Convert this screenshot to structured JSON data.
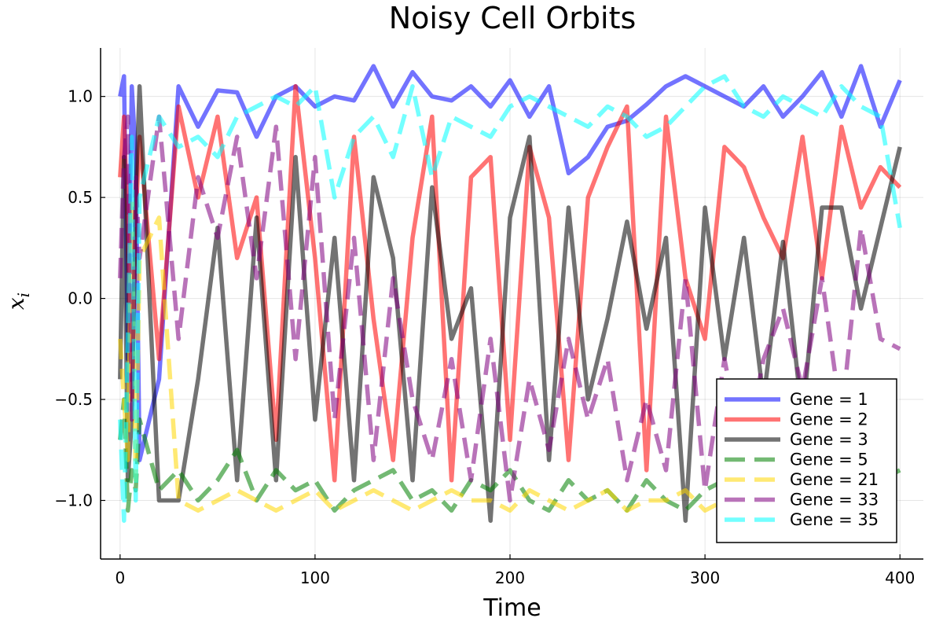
{
  "chart_data": {
    "type": "line",
    "title": "Noisy Cell Orbits",
    "xlabel": "Time",
    "ylabel": "x",
    "ylabel_sub": "i",
    "xlim": [
      -10,
      412
    ],
    "ylim": [
      -1.29,
      1.24
    ],
    "x_ticks": [
      0,
      100,
      200,
      300,
      400
    ],
    "x_tick_labels": [
      "0",
      "100",
      "200",
      "300",
      "400"
    ],
    "y_ticks": [
      -1.0,
      -0.5,
      0.0,
      0.5,
      1.0
    ],
    "y_tick_labels": [
      "−1.0",
      "−0.5",
      "0.0",
      "0.5",
      "1.0"
    ],
    "grid": true,
    "legend_position": "bottom-right",
    "x": [
      0,
      2,
      4,
      6,
      8,
      10,
      20,
      30,
      40,
      50,
      60,
      70,
      80,
      90,
      100,
      110,
      120,
      130,
      140,
      150,
      160,
      170,
      180,
      190,
      200,
      210,
      220,
      230,
      240,
      250,
      260,
      270,
      280,
      290,
      300,
      310,
      320,
      330,
      340,
      350,
      360,
      370,
      380,
      390,
      400
    ],
    "series": [
      {
        "name": "Gene = 1",
        "color": "#0000ff",
        "dash": "solid",
        "values": [
          1.0,
          1.1,
          -0.3,
          1.05,
          0.7,
          -0.8,
          -0.4,
          1.05,
          0.85,
          1.03,
          1.02,
          0.8,
          1.0,
          1.05,
          0.95,
          1.0,
          0.98,
          1.15,
          0.95,
          1.12,
          1.0,
          0.98,
          1.05,
          0.95,
          1.08,
          0.9,
          1.05,
          0.62,
          0.7,
          0.85,
          0.88,
          0.96,
          1.05,
          1.1,
          1.05,
          1.0,
          0.95,
          1.05,
          0.9,
          1.0,
          1.12,
          0.9,
          1.15,
          0.85,
          1.08
        ]
      },
      {
        "name": "Gene = 2",
        "color": "#ff0000",
        "dash": "solid",
        "values": [
          0.6,
          0.9,
          0.3,
          -0.5,
          0.4,
          0.8,
          -0.3,
          0.95,
          0.5,
          0.9,
          0.2,
          0.5,
          -0.7,
          1.05,
          0.2,
          -0.9,
          0.8,
          -0.1,
          -0.8,
          0.3,
          0.9,
          -0.9,
          0.6,
          0.7,
          -0.7,
          0.75,
          0.4,
          -0.8,
          0.5,
          0.75,
          0.95,
          -0.85,
          0.9,
          0.1,
          -0.2,
          0.75,
          0.65,
          0.4,
          0.2,
          0.8,
          0.1,
          0.85,
          0.45,
          0.65,
          0.55
        ]
      },
      {
        "name": "Gene = 3",
        "color": "#000000",
        "dash": "solid",
        "values": [
          -0.4,
          0.7,
          -0.9,
          -0.6,
          0.5,
          1.05,
          -1.0,
          -1.0,
          -0.4,
          0.35,
          -0.9,
          0.4,
          -0.9,
          0.7,
          -0.6,
          0.3,
          -0.9,
          0.6,
          0.2,
          -0.9,
          0.55,
          -0.2,
          0.05,
          -1.1,
          0.4,
          0.8,
          -0.8,
          0.45,
          -0.5,
          -0.1,
          0.38,
          -0.15,
          0.3,
          -1.1,
          0.45,
          -0.3,
          0.3,
          -0.5,
          0.28,
          -0.6,
          0.45,
          0.45,
          -0.05,
          0.35,
          0.75
        ]
      },
      {
        "name": "Gene = 5",
        "color": "#008000",
        "dash": "dash",
        "values": [
          -0.7,
          -0.5,
          -1.05,
          -0.85,
          -0.95,
          -0.6,
          -0.95,
          -0.85,
          -1.0,
          -0.9,
          -0.75,
          -1.0,
          -0.85,
          -0.95,
          -0.9,
          -1.05,
          -0.95,
          -0.9,
          -0.85,
          -1.0,
          -0.95,
          -1.05,
          -0.9,
          -0.95,
          -0.85,
          -1.0,
          -1.05,
          -0.9,
          -1.0,
          -0.95,
          -1.05,
          -0.9,
          -1.0,
          -1.05,
          -0.95,
          -0.9,
          -1.0,
          -0.85,
          -0.95,
          -1.0,
          -0.9,
          -0.95,
          -1.0,
          -0.9,
          -0.85
        ]
      },
      {
        "name": "Gene = 21",
        "color": "#ffd700",
        "dash": "dash",
        "values": [
          -0.2,
          -0.5,
          -0.8,
          0.5,
          -0.9,
          0.2,
          0.4,
          -1.0,
          -1.05,
          -1.0,
          -0.95,
          -1.0,
          -1.05,
          -1.0,
          -0.95,
          -1.05,
          -1.0,
          -0.95,
          -1.0,
          -1.05,
          -1.0,
          -0.95,
          -1.0,
          -1.0,
          -1.05,
          -0.95,
          -1.0,
          -1.05,
          -1.0,
          -0.95,
          -1.05,
          -1.0,
          -1.0,
          -0.95,
          -1.05,
          -1.0,
          -0.95,
          -1.05,
          -1.0,
          -1.0,
          -0.95,
          -1.05,
          -1.0,
          -1.0,
          -1.05
        ]
      },
      {
        "name": "Gene = 33",
        "color": "#800080",
        "dash": "dash",
        "values": [
          0.1,
          0.7,
          0.9,
          -0.6,
          0.6,
          0.2,
          0.9,
          -0.2,
          0.6,
          0.3,
          0.8,
          0.1,
          0.85,
          -0.3,
          0.7,
          -0.6,
          0.3,
          -0.8,
          0.1,
          -0.5,
          -0.8,
          -0.3,
          -0.9,
          -0.2,
          -1.0,
          -0.4,
          -0.75,
          -0.2,
          -0.6,
          -0.3,
          -0.9,
          -0.5,
          -0.85,
          0.1,
          -0.95,
          -0.3,
          -0.8,
          -0.3,
          -0.05,
          -0.45,
          0.1,
          -0.6,
          0.35,
          -0.2,
          -0.25
        ]
      },
      {
        "name": "Gene = 35",
        "color": "#00ffff",
        "dash": "dash",
        "values": [
          -0.6,
          -1.1,
          -0.2,
          0.8,
          -1.0,
          0.5,
          0.9,
          0.75,
          0.8,
          0.7,
          0.9,
          0.95,
          1.0,
          0.95,
          1.05,
          0.5,
          0.8,
          0.9,
          0.7,
          1.05,
          0.6,
          0.9,
          0.85,
          0.8,
          0.95,
          1.0,
          0.95,
          0.9,
          0.85,
          0.95,
          0.9,
          0.8,
          0.85,
          0.95,
          1.05,
          1.1,
          0.95,
          0.9,
          1.0,
          0.95,
          0.9,
          1.05,
          0.95,
          0.9,
          0.35
        ]
      }
    ]
  }
}
